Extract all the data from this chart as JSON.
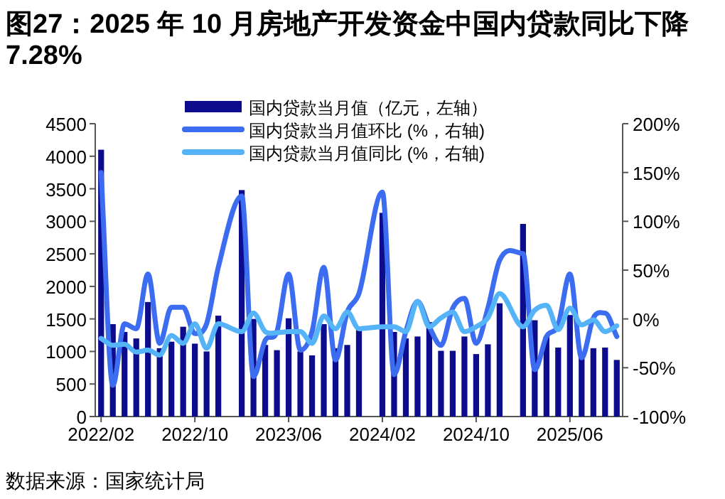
{
  "chart_data": {
    "type": "bar",
    "title": "图27：2025 年 10 月房地产开发资金中国内贷款同比下降 7.28%",
    "categories": [
      "2022/02",
      null,
      null,
      null,
      null,
      null,
      null,
      null,
      "2022/10",
      null,
      null,
      null,
      null,
      null,
      null,
      null,
      "2023/06",
      null,
      null,
      null,
      null,
      null,
      null,
      null,
      "2024/02",
      null,
      null,
      null,
      null,
      null,
      null,
      null,
      "2024/10",
      null,
      null,
      null,
      null,
      null,
      null,
      null,
      "2025/06",
      null,
      null,
      null,
      null
    ],
    "series": [
      {
        "name": "国内贷款当月值（亿元，左轴）",
        "color": "#0c0c8c",
        "values": [
          4100,
          1420,
          1300,
          1200,
          1760,
          1050,
          1150,
          1380,
          1120,
          1000,
          1550,
          null,
          3480,
          1500,
          1100,
          1020,
          1510,
          1000,
          940,
          1420,
          1050,
          1100,
          1330,
          null,
          3130,
          1300,
          1200,
          1230,
          1450,
          1010,
          1010,
          1230,
          960,
          1110,
          1740,
          null,
          2960,
          1480,
          1230,
          1060,
          1560,
          960,
          1050,
          1060,
          870
        ]
      },
      {
        "name": "国内贷款当月值环比 (%，右轴)",
        "type": "line",
        "axis": "y2",
        "color": "#3c6cf0",
        "values": [
          150,
          -68,
          -5,
          -10,
          46,
          -25,
          12,
          12,
          -15,
          -5,
          53,
          null,
          126,
          -59,
          -22,
          -13,
          46,
          -32,
          -13,
          53,
          -42,
          7,
          26,
          null,
          130,
          -57,
          -13,
          18,
          -8,
          -27,
          11,
          21,
          -25,
          11,
          60,
          null,
          67,
          -52,
          -18,
          -6,
          46,
          -40,
          1,
          6,
          -18
        ]
      },
      {
        "name": "国内贷款当月值同比 (%，右轴)",
        "type": "line",
        "axis": "y2",
        "color": "#55b4f8",
        "values": [
          -20,
          -27,
          -26,
          -34,
          -32,
          -37,
          -17,
          -25,
          -5,
          -30,
          -5,
          null,
          -13,
          6,
          -13,
          -14,
          -13,
          -13,
          -25,
          3,
          -10,
          7,
          -10,
          null,
          -8,
          -8,
          -13,
          18,
          -8,
          1,
          7,
          -13,
          -8,
          1,
          26,
          null,
          -8,
          9,
          14,
          -11,
          11,
          -6,
          -1,
          -13,
          -7
        ]
      }
    ],
    "ylim": [
      0,
      4500
    ],
    "yticks": [
      0,
      500,
      1000,
      1500,
      2000,
      2500,
      3000,
      3500,
      4000,
      4500
    ],
    "y2lim": [
      -100,
      200
    ],
    "y2ticks": [
      {
        "value": -100,
        "label": "-100%"
      },
      {
        "value": -50,
        "label": "-50%"
      },
      {
        "value": 0,
        "label": "0%"
      },
      {
        "value": 50,
        "label": "50%"
      },
      {
        "value": 100,
        "label": "100%"
      },
      {
        "value": 150,
        "label": "150%"
      },
      {
        "value": 200,
        "label": "200%"
      }
    ],
    "legend": "top",
    "line_style": "solid",
    "annotations": [
      "数据来源：国家统计局"
    ]
  }
}
